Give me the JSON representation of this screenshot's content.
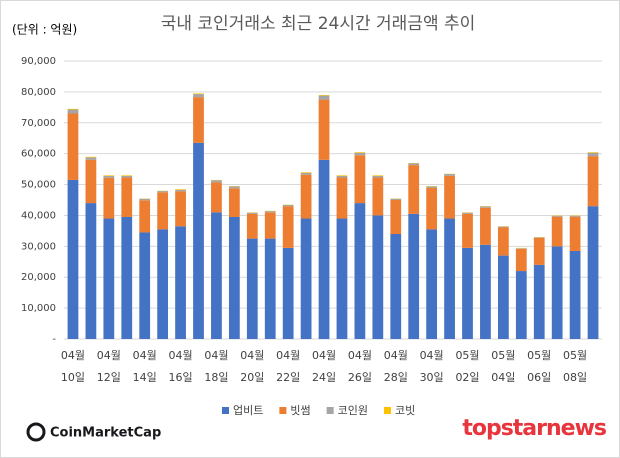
{
  "chart_data": {
    "type": "bar",
    "stacked": true,
    "title": "국내 코인거래소 최근 24시간 거래금액 추이",
    "unit_label": "(단위 : 억원)",
    "categories": [
      [
        "04월",
        "10일"
      ],
      null,
      [
        "04월",
        "12일"
      ],
      null,
      [
        "04월",
        "14일"
      ],
      null,
      [
        "04월",
        "16일"
      ],
      null,
      [
        "04월",
        "18일"
      ],
      null,
      [
        "04월",
        "20일"
      ],
      null,
      [
        "04월",
        "22일"
      ],
      null,
      [
        "04월",
        "24일"
      ],
      null,
      [
        "04월",
        "26일"
      ],
      null,
      [
        "04월",
        "28일"
      ],
      null,
      [
        "04월",
        "30일"
      ],
      null,
      [
        "05월",
        "02일"
      ],
      null,
      [
        "05월",
        "04일"
      ],
      null,
      [
        "05월",
        "06일"
      ],
      null,
      [
        "05월",
        "08일"
      ],
      null
    ],
    "series": [
      {
        "name": "업비트",
        "color": "#4472c4",
        "values": [
          51500,
          44000,
          39000,
          39500,
          34500,
          35500,
          36500,
          63500,
          41000,
          39500,
          32500,
          32500,
          29500,
          39000,
          58000,
          39000,
          44000,
          40000,
          34000,
          40500,
          35500,
          39000,
          29500,
          30500,
          27000,
          22000,
          24000,
          30000,
          28500,
          43000
        ]
      },
      {
        "name": "빗썸",
        "color": "#ed7d31",
        "values": [
          21500,
          14000,
          13200,
          12800,
          10400,
          12000,
          11300,
          14800,
          9700,
          9300,
          8000,
          8500,
          13500,
          14200,
          19500,
          13300,
          15500,
          12300,
          11000,
          15800,
          13400,
          13800,
          11000,
          12000,
          9100,
          7200,
          8700,
          9600,
          11100,
          16200
        ]
      },
      {
        "name": "코인원",
        "color": "#a5a5a5",
        "values": [
          1300,
          800,
          600,
          500,
          500,
          400,
          500,
          1000,
          700,
          600,
          400,
          400,
          400,
          600,
          1300,
          500,
          800,
          500,
          400,
          600,
          500,
          600,
          400,
          400,
          300,
          200,
          200,
          300,
          300,
          1100
        ]
      },
      {
        "name": "코빗",
        "color": "#ffc000",
        "values": [
          200,
          200,
          200,
          200,
          100,
          100,
          200,
          200,
          100,
          100,
          100,
          100,
          100,
          200,
          200,
          200,
          200,
          200,
          100,
          100,
          100,
          100,
          100,
          100,
          100,
          100,
          100,
          100,
          100,
          200
        ]
      }
    ],
    "ylim": [
      0,
      90000
    ],
    "yticks": [
      {
        "value": 0,
        "label": "-"
      },
      {
        "value": 10000,
        "label": "10,000"
      },
      {
        "value": 20000,
        "label": "20,000"
      },
      {
        "value": 30000,
        "label": "30,000"
      },
      {
        "value": 40000,
        "label": "40,000"
      },
      {
        "value": 50000,
        "label": "50,000"
      },
      {
        "value": 60000,
        "label": "60,000"
      },
      {
        "value": 70000,
        "label": "70,000"
      },
      {
        "value": 80000,
        "label": "80,000"
      },
      {
        "value": 90000,
        "label": "90,000"
      }
    ],
    "grid": true,
    "legend": "bottom",
    "logos": [
      "CoinMarketCap",
      "topstarnews"
    ]
  }
}
